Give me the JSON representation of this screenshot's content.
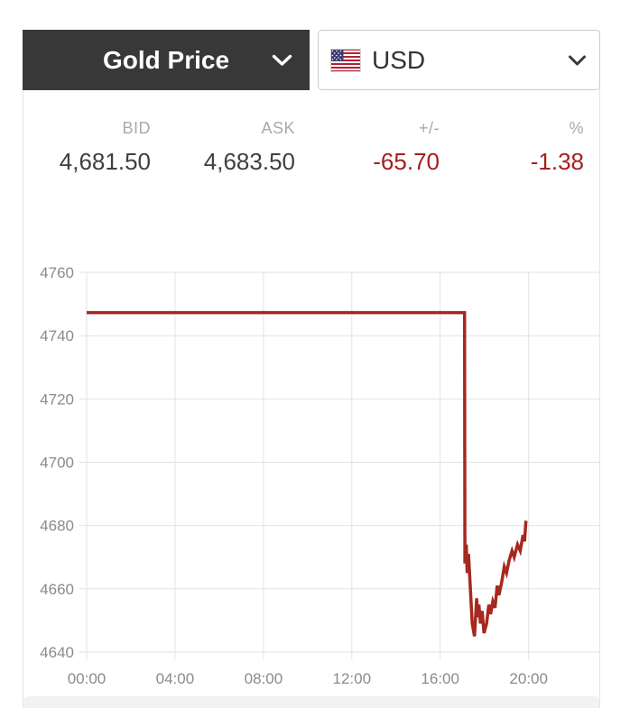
{
  "header": {
    "metal_label": "Gold Price",
    "currency": {
      "code": "USD",
      "flag": "us-flag"
    }
  },
  "quote": {
    "bid": {
      "label": "BID",
      "value": "4,681.50"
    },
    "ask": {
      "label": "ASK",
      "value": "4,683.50"
    },
    "change": {
      "label": "+/-",
      "value": "-65.70"
    },
    "change_pct": {
      "label": "%",
      "value": "-1.38"
    }
  },
  "colors": {
    "header_bg": "#383838",
    "negative_text": "#a32020",
    "line_color": "#a5291f",
    "grid_color": "#e2e2e2",
    "axis_label_color": "#8a8a8a"
  },
  "chart_data": {
    "type": "line",
    "title": "",
    "xlabel": "",
    "ylabel": "",
    "grid": true,
    "ylim": [
      4640,
      4760
    ],
    "xlim_hours": [
      0,
      23.2
    ],
    "y_ticks": [
      4640,
      4660,
      4680,
      4700,
      4720,
      4740,
      4760
    ],
    "x_ticks": [
      0,
      4,
      8,
      12,
      16,
      20
    ],
    "x_tick_labels": [
      "00:00",
      "04:00",
      "08:00",
      "12:00",
      "16:00",
      "20:00"
    ],
    "series": [
      {
        "name": "Gold Price USD",
        "points": [
          [
            0,
            4747.3
          ],
          [
            17.1,
            4747.3
          ],
          [
            17.12,
            4668
          ],
          [
            17.18,
            4674
          ],
          [
            17.22,
            4665
          ],
          [
            17.28,
            4671
          ],
          [
            17.45,
            4649
          ],
          [
            17.55,
            4645
          ],
          [
            17.65,
            4657
          ],
          [
            17.7,
            4651
          ],
          [
            17.75,
            4655
          ],
          [
            17.82,
            4649
          ],
          [
            17.9,
            4653
          ],
          [
            17.98,
            4646
          ],
          [
            18.1,
            4649
          ],
          [
            18.2,
            4655
          ],
          [
            18.28,
            4652
          ],
          [
            18.38,
            4656
          ],
          [
            18.48,
            4654
          ],
          [
            18.58,
            4661
          ],
          [
            18.66,
            4658
          ],
          [
            18.78,
            4662
          ],
          [
            18.9,
            4667
          ],
          [
            19.0,
            4665
          ],
          [
            19.12,
            4669
          ],
          [
            19.25,
            4672
          ],
          [
            19.35,
            4670
          ],
          [
            19.5,
            4674
          ],
          [
            19.62,
            4672
          ],
          [
            19.75,
            4677
          ],
          [
            19.82,
            4675
          ],
          [
            19.88,
            4681.5
          ]
        ]
      }
    ]
  }
}
